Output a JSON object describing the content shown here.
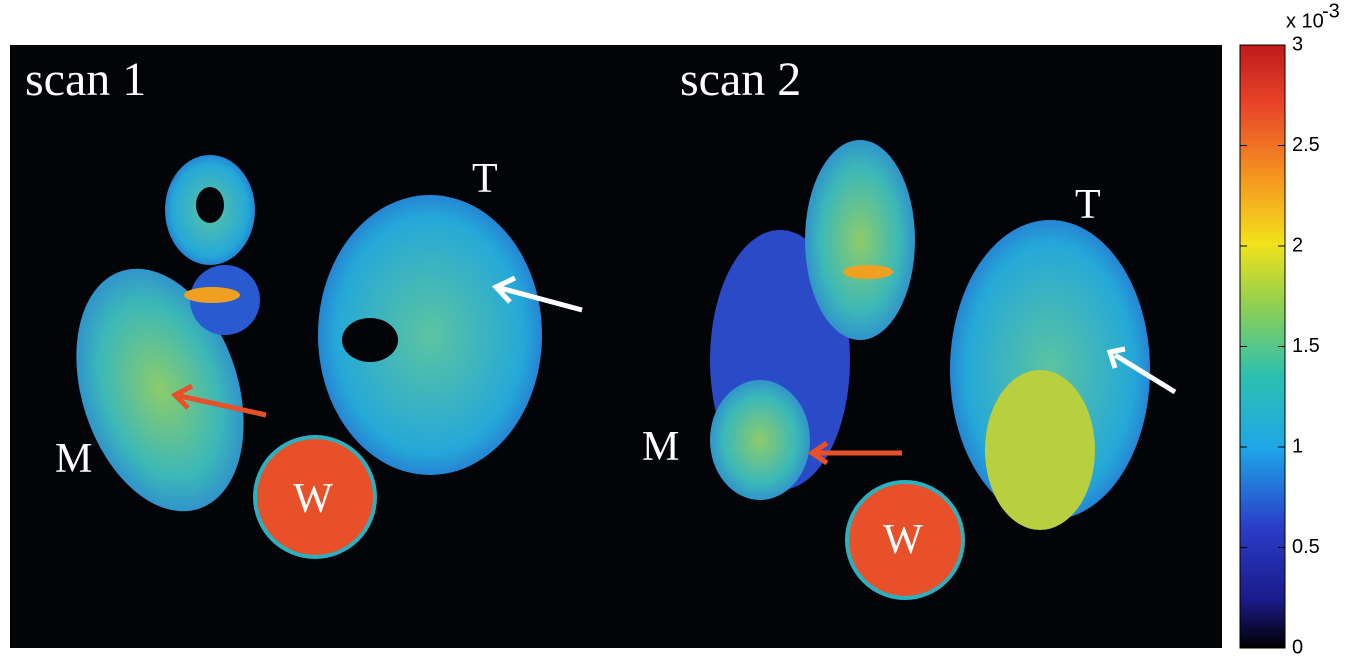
{
  "panels": [
    {
      "title": "scan 1",
      "labels": {
        "top": "T",
        "middle": "M",
        "water": "W"
      }
    },
    {
      "title": "scan 2",
      "labels": {
        "top": "T",
        "middle": "M",
        "water": "W"
      }
    }
  ],
  "colorbar": {
    "range": [
      0,
      3
    ],
    "ticks": [
      0,
      0.5,
      1,
      1.5,
      2,
      2.5,
      3
    ],
    "multiplier": "x 10",
    "exponent": "-3"
  }
}
